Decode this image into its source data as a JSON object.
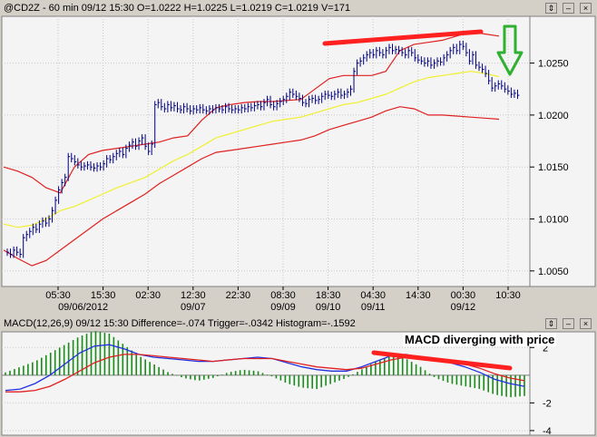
{
  "price_panel": {
    "title": "@CD2Z - 60 min 09/12 15:30 O=1.0222 H=1.0225 L=1.0219 C=1.0219 V=171",
    "controls": [
      "⇕",
      "–",
      "×"
    ]
  },
  "macd_panel": {
    "title": "MACD(12,26,9) 09/12 15:30 Difference=-.074 Trigger=-.0342 Histogram=-.1592",
    "annotation": "MACD diverging with price",
    "controls": [
      "⇕",
      "–",
      "×"
    ]
  },
  "colors": {
    "bars": "#000080",
    "bands": "#e02020",
    "average": "#f0f030",
    "macd": "#2030e0",
    "trigger": "#e02020",
    "histogram": "#1a8a1a",
    "annotation": "#ff2020",
    "arrow": "#30b030"
  },
  "chart_data": [
    {
      "type": "line",
      "title": "@CD2Z - 60 min 09/12 15:30 O=1.0222 H=1.0225 L=1.0219 C=1.0219 V=171",
      "x_tick_labels": [
        "05:30",
        "15:30",
        "02:30",
        "12:30",
        "22:30",
        "08:30",
        "18:30",
        "04:30",
        "14:30",
        "00:30",
        "10:30"
      ],
      "x_date_labels": [
        "09/06/2012",
        "09/07",
        "09/09",
        "09/10",
        "09/11",
        "09/12"
      ],
      "y_tick_labels": [
        "1.0250",
        "1.0200",
        "1.0150",
        "1.0100",
        "1.0050"
      ],
      "ylim": [
        1.0035,
        1.0295
      ],
      "grid": true,
      "close": [
        1.0068,
        1.0066,
        1.007,
        1.0068,
        1.0066,
        1.0082,
        1.0085,
        1.0088,
        1.0092,
        1.009,
        1.0095,
        1.0098,
        1.0096,
        1.01,
        1.0108,
        1.0118,
        1.0128,
        1.0135,
        1.014,
        1.016,
        1.0158,
        1.0155,
        1.0152,
        1.015,
        1.0151,
        1.0152,
        1.015,
        1.0149,
        1.0151,
        1.015,
        1.0153,
        1.0158,
        1.0157,
        1.016,
        1.0163,
        1.0165,
        1.0162,
        1.0168,
        1.0171,
        1.0174,
        1.017,
        1.0175,
        1.0178,
        1.017,
        1.0165,
        1.0172,
        1.021,
        1.0212,
        1.0208,
        1.0206,
        1.021,
        1.0207,
        1.0209,
        1.0206,
        1.0205,
        1.0208,
        1.0206,
        1.0204,
        1.0206,
        1.0205,
        1.0207,
        1.0205,
        1.0204,
        1.0206,
        1.0205,
        1.0207,
        1.0206,
        1.0205,
        1.0208,
        1.0206,
        1.0205,
        1.0206,
        1.0205,
        1.0207,
        1.0206,
        1.0208,
        1.0207,
        1.0209,
        1.021,
        1.0208,
        1.0212,
        1.0215,
        1.021,
        1.0208,
        1.0211,
        1.0213,
        1.0215,
        1.0218,
        1.0222,
        1.022,
        1.0218,
        1.0216,
        1.0212,
        1.0211,
        1.0215,
        1.0216,
        1.0214,
        1.0215,
        1.0218,
        1.022,
        1.0219,
        1.0218,
        1.022,
        1.0222,
        1.0219,
        1.022,
        1.0222,
        1.0225,
        1.0242,
        1.025,
        1.0252,
        1.0255,
        1.0258,
        1.026,
        1.0258,
        1.0262,
        1.026,
        1.0258,
        1.0262,
        1.0265,
        1.0262,
        1.0263,
        1.0262,
        1.026,
        1.0258,
        1.0262,
        1.026,
        1.0255,
        1.0253,
        1.0252,
        1.025,
        1.0252,
        1.0248,
        1.025,
        1.0252,
        1.0251,
        1.0255,
        1.0258,
        1.0262,
        1.0265,
        1.0262,
        1.0268,
        1.0266,
        1.026,
        1.0252,
        1.0258,
        1.0248,
        1.0246,
        1.0244,
        1.024,
        1.0233,
        1.0226,
        1.0228,
        1.023,
        1.0228,
        1.0225,
        1.0223,
        1.022,
        1.0221,
        1.0219
      ],
      "series": [
        {
          "name": "upper band",
          "values": [
            1.015,
            1.0146,
            1.014,
            1.013,
            1.0125,
            1.015,
            1.0162,
            1.0166,
            1.0168,
            1.017,
            1.0172,
            1.0174,
            1.0178,
            1.018,
            1.0195,
            1.0207,
            1.021,
            1.0212,
            1.0213,
            1.0213,
            1.0214,
            1.0215,
            1.0225,
            1.0235,
            1.0238,
            1.0238,
            1.0238,
            1.0242,
            1.0262,
            1.0268,
            1.027,
            1.0272,
            1.0276,
            1.028,
            1.0278,
            1.0276
          ]
        },
        {
          "name": "middle average",
          "values": [
            1.0095,
            1.0092,
            1.0094,
            1.01,
            1.0108,
            1.0112,
            1.0118,
            1.0124,
            1.013,
            1.0135,
            1.014,
            1.0148,
            1.0156,
            1.0162,
            1.017,
            1.0178,
            1.0182,
            1.0186,
            1.019,
            1.0194,
            1.0196,
            1.0198,
            1.0202,
            1.0206,
            1.021,
            1.0212,
            1.0216,
            1.022,
            1.0226,
            1.0232,
            1.0236,
            1.0238,
            1.024,
            1.0242,
            1.024,
            1.0237
          ]
        },
        {
          "name": "lower band",
          "values": [
            1.007,
            1.0062,
            1.0055,
            1.006,
            1.007,
            1.008,
            1.009,
            1.01,
            1.0108,
            1.0116,
            1.0124,
            1.0134,
            1.0142,
            1.015,
            1.0158,
            1.0164,
            1.0166,
            1.0168,
            1.017,
            1.0172,
            1.0174,
            1.0176,
            1.018,
            1.0186,
            1.019,
            1.0194,
            1.0198,
            1.0204,
            1.0208,
            1.0206,
            1.02,
            1.02,
            1.0199,
            1.0198,
            1.0197,
            1.0196
          ]
        }
      ]
    },
    {
      "type": "bar",
      "title": "MACD(12,26,9) 09/12 15:30 Difference=-.074 Trigger=-.0342 Histogram=-.1592",
      "y_tick_labels": [
        "2",
        "-2",
        "-4"
      ],
      "ylim": [
        -4.2,
        3.0
      ],
      "series": [
        {
          "name": "Difference",
          "values": [
            -1.1,
            -1.0,
            -0.6,
            0.0,
            0.8,
            1.6,
            2.1,
            2.2,
            1.9,
            1.5,
            1.3,
            1.2,
            1.1,
            1.0,
            1.0,
            1.1,
            1.2,
            1.3,
            1.2,
            0.9,
            0.6,
            0.4,
            0.3,
            0.3,
            0.6,
            1.0,
            1.4,
            1.5,
            1.3,
            1.1,
            0.9,
            0.6,
            0.2,
            -0.3,
            -0.6,
            -0.8
          ]
        },
        {
          "name": "Trigger",
          "values": [
            -1.2,
            -1.2,
            -1.1,
            -0.8,
            -0.3,
            0.3,
            0.9,
            1.3,
            1.5,
            1.5,
            1.4,
            1.3,
            1.2,
            1.1,
            1.0,
            1.1,
            1.2,
            1.2,
            1.2,
            1.0,
            0.8,
            0.6,
            0.5,
            0.4,
            0.5,
            0.8,
            1.1,
            1.3,
            1.3,
            1.2,
            1.0,
            0.8,
            0.5,
            0.1,
            -0.2,
            -0.4
          ]
        },
        {
          "name": "Histogram",
          "values": [
            0.2,
            0.6,
            1.0,
            1.6,
            2.2,
            2.8,
            3.2,
            3.0,
            2.2,
            1.4,
            0.8,
            0.2,
            -0.2,
            -0.4,
            -0.2,
            0.2,
            0.4,
            0.3,
            -0.1,
            -0.6,
            -0.9,
            -1.0,
            -0.6,
            -0.2,
            0.4,
            1.0,
            1.4,
            1.2,
            0.6,
            -0.2,
            -0.6,
            -0.8,
            -1.0,
            -1.4,
            -1.6,
            -1.5
          ]
        }
      ]
    }
  ]
}
